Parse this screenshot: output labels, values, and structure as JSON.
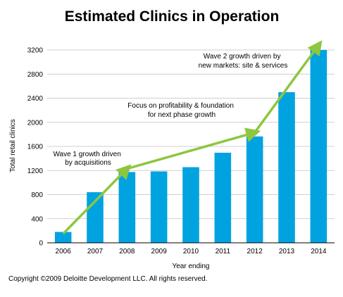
{
  "chart_data": {
    "type": "bar",
    "title": "Estimated Clinics in Operation",
    "xlabel": "Year ending",
    "ylabel": "Total retail clinics",
    "categories": [
      "2006",
      "2007",
      "2008",
      "2009",
      "2010",
      "2011",
      "2012",
      "2013",
      "2014"
    ],
    "values": [
      180,
      840,
      1175,
      1185,
      1255,
      1495,
      1765,
      2500,
      3200
    ],
    "ylim": [
      0,
      3200
    ],
    "yticks": [
      0,
      400,
      800,
      1200,
      1600,
      2000,
      2400,
      2800,
      3200
    ],
    "grid": true,
    "bar_color": "#00a3e0",
    "arrow_color": "#8dc63f",
    "annotations": [
      {
        "lines": [
          "Wave 1 growth driven",
          "by acquisitions"
        ]
      },
      {
        "lines": [
          "Focus on profitability & foundation",
          "for next phase growth"
        ]
      },
      {
        "lines": [
          "Wave 2 growth driven by",
          "new markets: site & services"
        ]
      }
    ],
    "arrows": [
      {
        "from": [
          "2006",
          150
        ],
        "to": [
          "2008",
          1230
        ]
      },
      {
        "from": [
          "2008",
          1230
        ],
        "to": [
          "2012",
          1830
        ]
      },
      {
        "from": [
          "2012",
          1830
        ],
        "to": [
          "2014",
          3280
        ]
      }
    ]
  },
  "footer": {
    "copyright": "Copyright ©2009 Deloitte Development LLC. All rights reserved."
  }
}
